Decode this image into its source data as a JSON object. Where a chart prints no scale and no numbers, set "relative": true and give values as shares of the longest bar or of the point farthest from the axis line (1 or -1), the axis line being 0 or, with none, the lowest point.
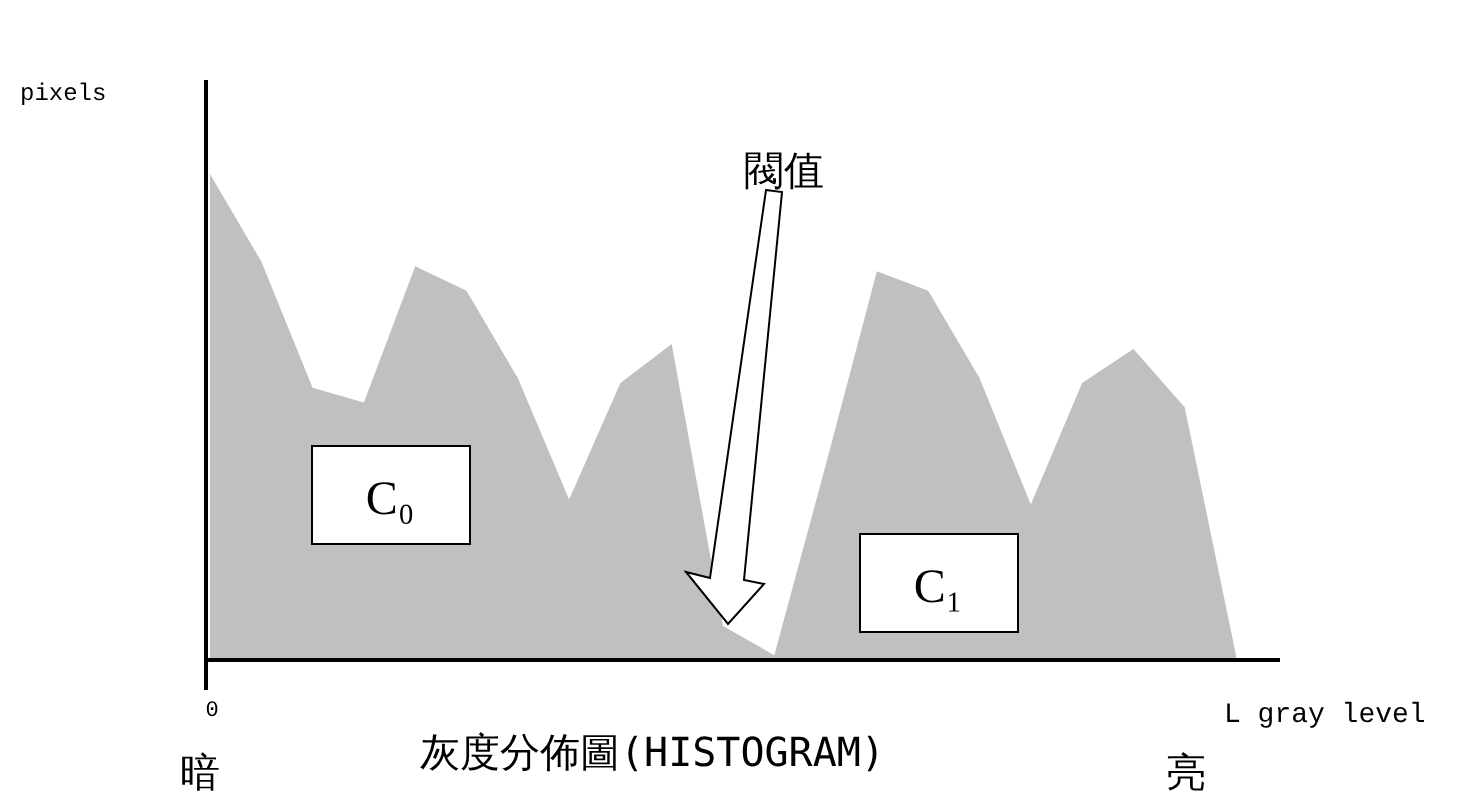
{
  "chart_data": {
    "type": "area",
    "relative": true,
    "xlabel": "L gray level",
    "ylabel": "pixels",
    "categories": [
      null,
      null,
      null,
      null,
      null,
      null,
      null,
      null,
      null,
      null,
      null,
      null,
      null,
      null,
      null,
      null,
      null,
      null,
      null,
      null,
      null
    ],
    "series": [
      {
        "color": "#c0c0c0",
        "values": [
          1.0,
          0.82,
          0.56,
          0.53,
          0.81,
          0.76,
          0.58,
          0.33,
          0.57,
          0.65,
          0.07,
          0.01,
          0.4,
          0.8,
          0.76,
          0.58,
          0.32,
          0.57,
          0.64,
          0.52,
          0.01
        ]
      }
    ],
    "annotations": [
      "閥值",
      "C₀",
      "C₁",
      "0",
      "灰度分佈圖(HISTOGRAM)",
      "暗",
      "亮"
    ]
  }
}
